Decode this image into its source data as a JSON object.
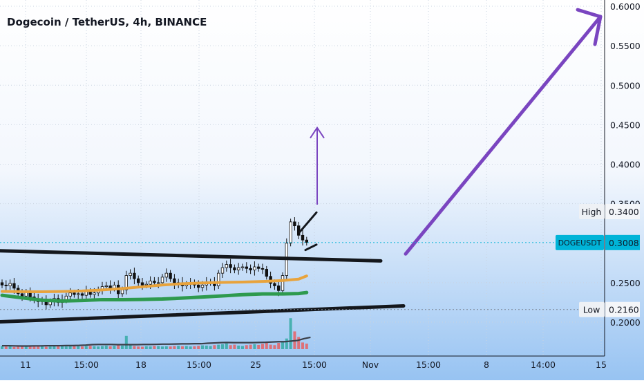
{
  "chart_data": {
    "type": "candlestick",
    "title": "Dogecoin / TetherUS, 4h, BINANCE",
    "y_axis": {
      "ticks": [
        "0.6000",
        "0.5500",
        "0.5000",
        "0.4500",
        "0.4000",
        "0.3500",
        "0.2500",
        "0.2000"
      ],
      "tick_values": [
        0.6,
        0.55,
        0.5,
        0.45,
        0.4,
        0.35,
        0.25,
        0.2
      ],
      "range": [
        0.163,
        0.607
      ]
    },
    "x_axis": {
      "ticks": [
        "11",
        "15:00",
        "18",
        "15:00",
        "25",
        "15:00",
        "Nov",
        "15:00",
        "8",
        "14:00",
        "15"
      ]
    },
    "labels": {
      "high": {
        "name": "High",
        "value": "0.3400"
      },
      "current": {
        "name": "DOGEUSDT",
        "value": "0.3008"
      },
      "low": {
        "name": "Low",
        "value": "0.2160"
      }
    },
    "reference_levels": {
      "high": 0.34,
      "current": 0.3008,
      "low": 0.216
    },
    "candles_close": [
      0.247,
      0.246,
      0.249,
      0.243,
      0.236,
      0.233,
      0.238,
      0.232,
      0.229,
      0.226,
      0.228,
      0.222,
      0.226,
      0.23,
      0.225,
      0.228,
      0.233,
      0.237,
      0.235,
      0.236,
      0.234,
      0.239,
      0.235,
      0.237,
      0.241,
      0.245,
      0.246,
      0.243,
      0.247,
      0.236,
      0.241,
      0.259,
      0.262,
      0.255,
      0.25,
      0.247,
      0.248,
      0.252,
      0.25,
      0.25,
      0.257,
      0.262,
      0.255,
      0.248,
      0.25,
      0.246,
      0.248,
      0.25,
      0.247,
      0.244,
      0.247,
      0.25,
      0.251,
      0.246,
      0.262,
      0.269,
      0.273,
      0.269,
      0.266,
      0.269,
      0.27,
      0.268,
      0.266,
      0.27,
      0.268,
      0.267,
      0.258,
      0.249,
      0.246,
      0.24,
      0.259,
      0.3,
      0.327,
      0.322,
      0.31,
      0.304,
      0.301
    ],
    "ema_orange": [
      0.239,
      0.2386,
      0.2385,
      0.2388,
      0.2395,
      0.2408,
      0.2426,
      0.2448,
      0.247,
      0.2487,
      0.2497,
      0.2503,
      0.2508,
      0.2515,
      0.2527,
      0.2545,
      0.2585
    ],
    "ema_green": [
      0.234,
      0.2308,
      0.2278,
      0.2268,
      0.2275,
      0.2285,
      0.2285,
      0.2288,
      0.2293,
      0.2305,
      0.2318,
      0.2333,
      0.2348,
      0.2358,
      0.2358,
      0.2362,
      0.2375
    ],
    "ema_x_candle": [
      0,
      5,
      10,
      15,
      20,
      25,
      30,
      35,
      40,
      45,
      50,
      55,
      60,
      65,
      70,
      74,
      76
    ],
    "volume": [
      14,
      12,
      16,
      10,
      12,
      11,
      13,
      15,
      12,
      14,
      13,
      11,
      12,
      15,
      14,
      13,
      12,
      16,
      14,
      13,
      12,
      14,
      15,
      13,
      12,
      14,
      16,
      13,
      15,
      18,
      16,
      60,
      22,
      14,
      12,
      11,
      13,
      12,
      15,
      14,
      12,
      13,
      12,
      14,
      15,
      13,
      14,
      12,
      13,
      15,
      17,
      16,
      14,
      18,
      20,
      22,
      26,
      18,
      20,
      16,
      14,
      18,
      20,
      22,
      19,
      24,
      30,
      20,
      18,
      28,
      34,
      48,
      140,
      80,
      55,
      30,
      25
    ],
    "volume_ma": [
      11,
      11,
      10.5,
      10,
      10,
      10.5,
      10.5,
      11,
      11,
      11,
      11.5,
      11.5,
      12,
      13,
      14.5,
      15,
      15,
      15,
      14.5,
      14.5,
      14.5,
      14.5,
      15,
      15,
      15.5,
      16,
      16,
      16.5,
      17,
      17,
      17.5,
      17.5,
      19,
      20,
      21,
      21.5,
      21,
      21,
      21,
      21,
      21.5,
      22,
      23,
      24,
      24,
      26,
      28,
      34,
      38
    ],
    "annotations": {
      "channel_upper": {
        "from": [
          0,
          0.2904
        ],
        "to": [
          551,
          0.2776
        ]
      },
      "channel_lower": {
        "from": [
          0,
          0.2004
        ],
        "to": [
          584,
          0.2206
        ]
      },
      "wedge_upper": {
        "from": [
          434,
          0.3144
        ],
        "to": [
          458,
          0.3389
        ]
      },
      "wedge_lower": {
        "from": [
          442,
          0.2913
        ],
        "to": [
          458,
          0.2982
        ]
      },
      "short_arrow": {
        "from": [
          459,
          0.3488
        ],
        "to": [
          459,
          0.4462
        ]
      },
      "long_arrow": {
        "from": [
          587,
          0.2864
        ],
        "to": [
          869,
          0.5868
        ]
      }
    },
    "colors": {
      "up": "#26a69a",
      "down": "#ef5350",
      "candle_wick": "#111111",
      "orange_ma": "#e8a33c",
      "green_ma": "#2e9a4e",
      "trendline": "#14171c",
      "arrow": "#7a45c0",
      "current_badge": "#00b4d8",
      "bg_top": "#ffffff",
      "bg_bottom": "#97c3f2",
      "volume_line": "#3a3f49"
    }
  }
}
